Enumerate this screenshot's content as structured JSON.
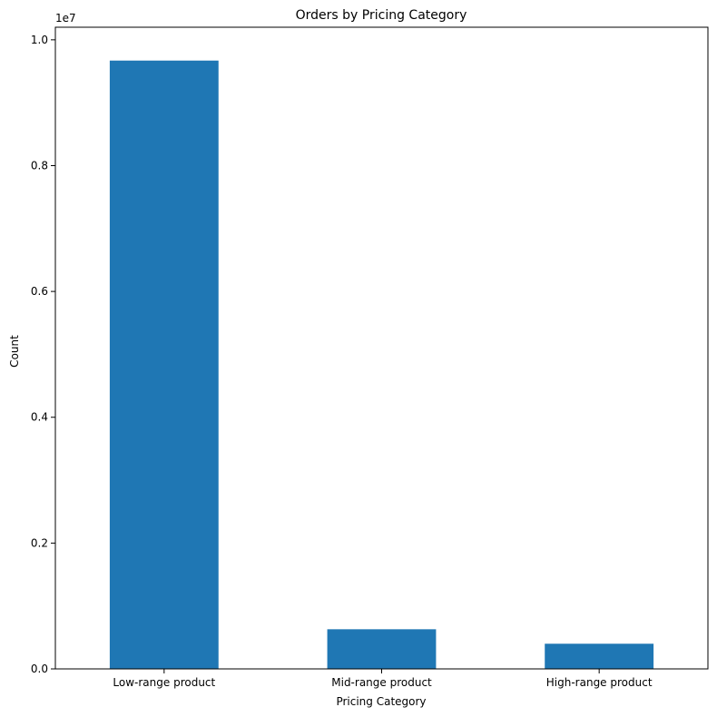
{
  "chart_data": {
    "type": "bar",
    "title": "Orders by Pricing Category",
    "xlabel": "Pricing Category",
    "ylabel": "Count",
    "y_scale_note": "1e7",
    "categories": [
      "Low-range product",
      "Mid-range product",
      "High-range product"
    ],
    "values": [
      9670000,
      630000,
      400000
    ],
    "ylim": [
      0,
      10200000
    ],
    "yticks": [
      0,
      2000000,
      4000000,
      6000000,
      8000000,
      10000000
    ],
    "ytick_labels": [
      "0.0",
      "0.2",
      "0.4",
      "0.6",
      "0.8",
      "1.0"
    ],
    "grid": false,
    "bar_color": "#1f77b4"
  }
}
